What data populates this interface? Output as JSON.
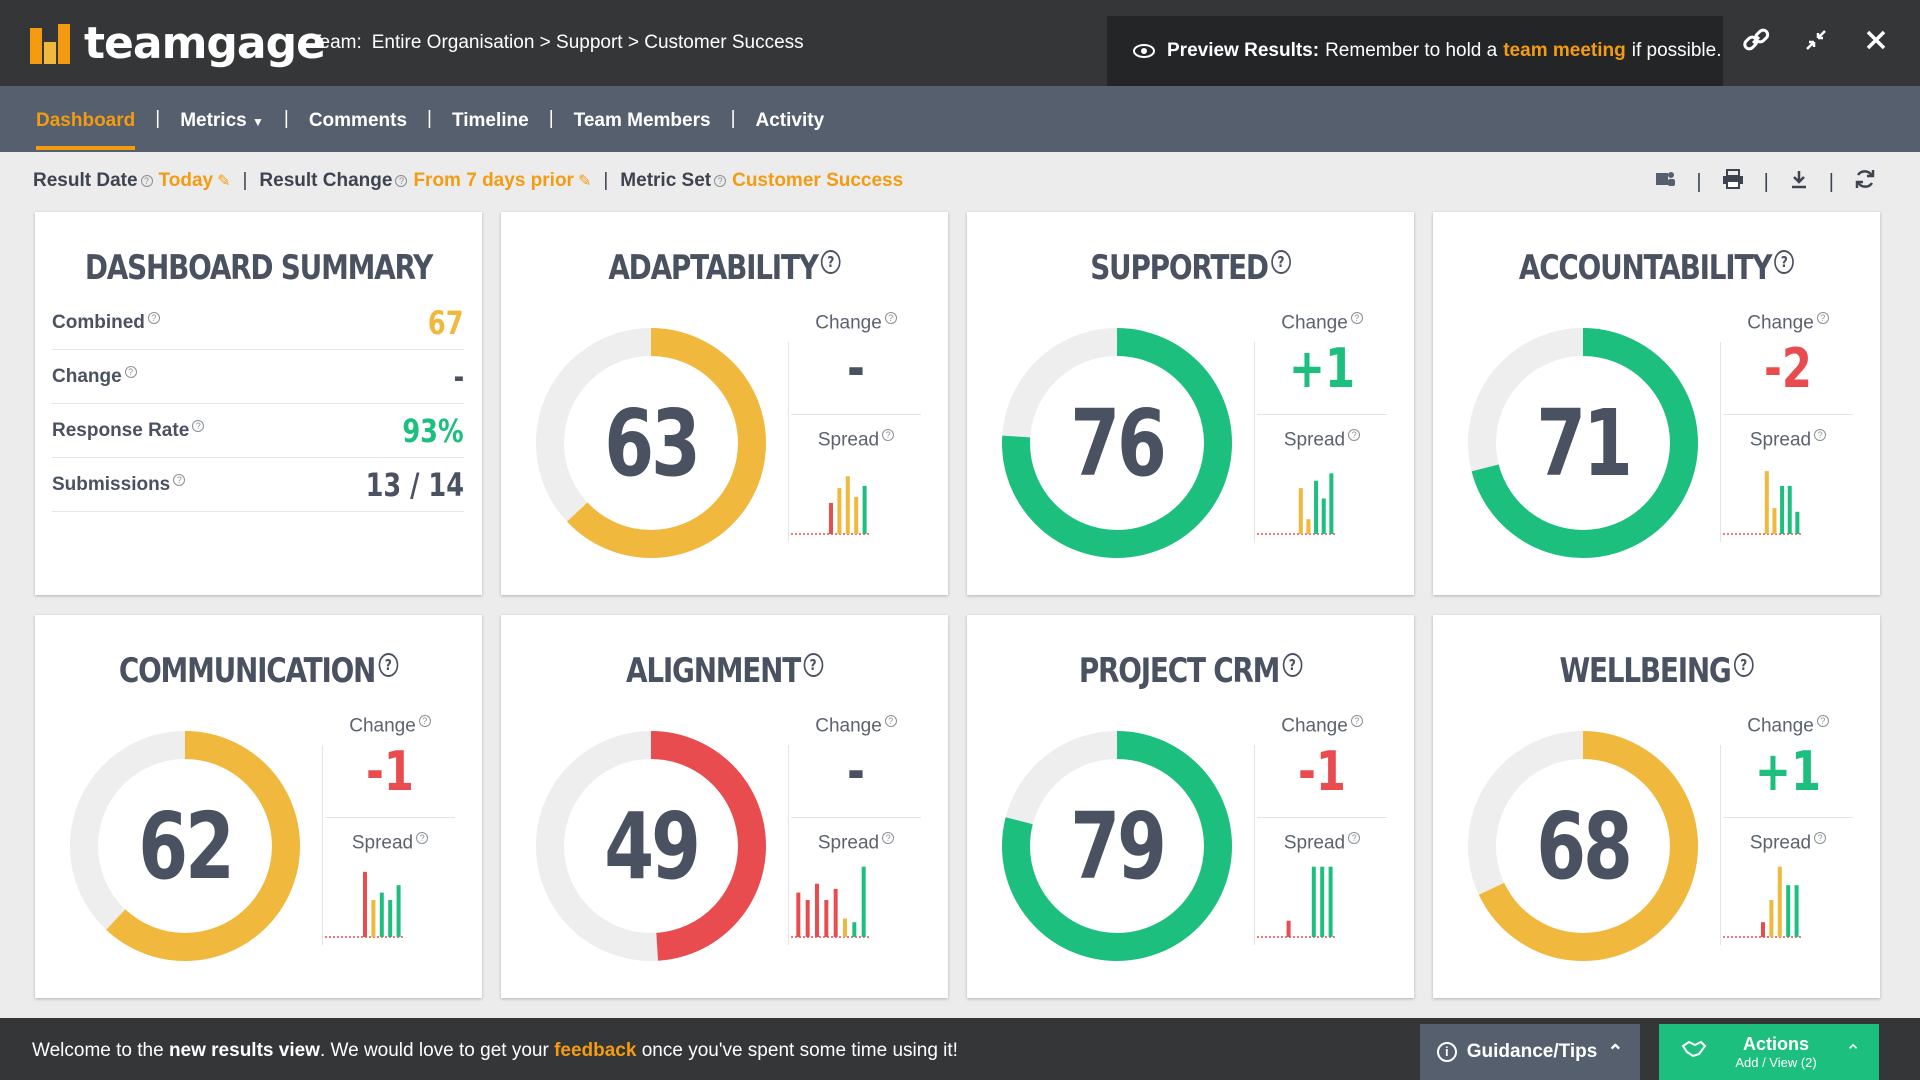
{
  "brand": {
    "name": "teamgage"
  },
  "breadcrumb": {
    "label": "Team:",
    "path": "Entire Organisation > Support > Customer Success"
  },
  "preview": {
    "bold": "Preview Results:",
    "before": "Remember to hold a",
    "link": "team meeting",
    "after": "if possible."
  },
  "nav": {
    "dashboard": "Dashboard",
    "metrics": "Metrics",
    "comments": "Comments",
    "timeline": "Timeline",
    "team_members": "Team Members",
    "activity": "Activity"
  },
  "filters": {
    "result_date_label": "Result Date",
    "result_date_value": "Today",
    "result_change_label": "Result Change",
    "result_change_value": "From 7 days prior",
    "metric_set_label": "Metric Set",
    "metric_set_value": "Customer Success"
  },
  "summary": {
    "title": "DASHBOARD SUMMARY",
    "rows": [
      {
        "label": "Combined",
        "value": "67",
        "color": "#f0b83c"
      },
      {
        "label": "Change",
        "value": "-",
        "color": "#4a5160"
      },
      {
        "label": "Response Rate",
        "value": "93%",
        "color": "#1dbf7e"
      },
      {
        "label": "Submissions",
        "value": "13 / 14",
        "color": "#4a5160"
      }
    ]
  },
  "labels": {
    "change": "Change",
    "spread": "Spread"
  },
  "metrics": [
    {
      "title": "ADAPTABILITY",
      "score": "63",
      "change": "-",
      "change_type": "neu",
      "color": "#f0b83c",
      "fraction": 0.63,
      "spread": [
        [
          "#e84c4f",
          0
        ],
        [
          "#e84c4f",
          0
        ],
        [
          "#e84c4f",
          0
        ],
        [
          "#e84c4f",
          0
        ],
        [
          "#e84c4f",
          0.42
        ],
        [
          "#f0b83c",
          0.62
        ],
        [
          "#f0b83c",
          0.78
        ],
        [
          "#f0b83c",
          0.5
        ],
        [
          "#1dbf7e",
          0.65
        ]
      ]
    },
    {
      "title": "SUPPORTED",
      "score": "76",
      "change": "+1",
      "change_type": "pos",
      "color": "#1dbf7e",
      "fraction": 0.76,
      "spread": [
        [
          "#e84c4f",
          0
        ],
        [
          "#e84c4f",
          0
        ],
        [
          "#e84c4f",
          0
        ],
        [
          "#e84c4f",
          0
        ],
        [
          "#e84c4f",
          0
        ],
        [
          "#f0b83c",
          0.62
        ],
        [
          "#f0b83c",
          0.2
        ],
        [
          "#1dbf7e",
          0.72
        ],
        [
          "#1dbf7e",
          0.48
        ],
        [
          "#1dbf7e",
          0.82
        ]
      ]
    },
    {
      "title": "ACCOUNTABILITY",
      "score": "71",
      "change": "-2",
      "change_type": "neg",
      "color": "#1dbf7e",
      "fraction": 0.71,
      "spread": [
        [
          "#e84c4f",
          0
        ],
        [
          "#e84c4f",
          0
        ],
        [
          "#e84c4f",
          0
        ],
        [
          "#e84c4f",
          0
        ],
        [
          "#e84c4f",
          0
        ],
        [
          "#f0b83c",
          0.85
        ],
        [
          "#f0b83c",
          0.35
        ],
        [
          "#1dbf7e",
          0.65
        ],
        [
          "#1dbf7e",
          0.65
        ],
        [
          "#1dbf7e",
          0.3
        ]
      ]
    },
    {
      "title": "COMMUNICATION",
      "score": "62",
      "change": "-1",
      "change_type": "neg",
      "color": "#f0b83c",
      "fraction": 0.62,
      "spread": [
        [
          "#e84c4f",
          0
        ],
        [
          "#e84c4f",
          0
        ],
        [
          "#e84c4f",
          0
        ],
        [
          "#e84c4f",
          0
        ],
        [
          "#e84c4f",
          0.88
        ],
        [
          "#f0b83c",
          0.5
        ],
        [
          "#1dbf7e",
          0.6
        ],
        [
          "#1dbf7e",
          0.5
        ],
        [
          "#1dbf7e",
          0.7
        ]
      ]
    },
    {
      "title": "ALIGNMENT",
      "score": "49",
      "change": "-",
      "change_type": "neu",
      "color": "#e84c4f",
      "fraction": 0.49,
      "spread": [
        [
          "#e84c4f",
          0.6
        ],
        [
          "#e84c4f",
          0.5
        ],
        [
          "#e84c4f",
          0.72
        ],
        [
          "#e84c4f",
          0.5
        ],
        [
          "#e84c4f",
          0.65
        ],
        [
          "#f0b83c",
          0.25
        ],
        [
          "#1dbf7e",
          0.2
        ],
        [
          "#1dbf7e",
          0.95
        ]
      ]
    },
    {
      "title": "PROJECT CRM",
      "score": "79",
      "change": "-1",
      "change_type": "neg",
      "color": "#1dbf7e",
      "fraction": 0.79,
      "spread": [
        [
          "#e84c4f",
          0
        ],
        [
          "#e84c4f",
          0
        ],
        [
          "#e84c4f",
          0
        ],
        [
          "#e84c4f",
          0.22
        ],
        [
          "#e84c4f",
          0
        ],
        [
          "#f0b83c",
          0
        ],
        [
          "#1dbf7e",
          0.95
        ],
        [
          "#1dbf7e",
          0.95
        ],
        [
          "#1dbf7e",
          0.95
        ]
      ]
    },
    {
      "title": "WELLBEING",
      "score": "68",
      "change": "+1",
      "change_type": "pos",
      "color": "#f0b83c",
      "fraction": 0.68,
      "spread": [
        [
          "#e84c4f",
          0
        ],
        [
          "#e84c4f",
          0
        ],
        [
          "#e84c4f",
          0
        ],
        [
          "#e84c4f",
          0
        ],
        [
          "#e84c4f",
          0.2
        ],
        [
          "#f0b83c",
          0.5
        ],
        [
          "#f0b83c",
          0.95
        ],
        [
          "#1dbf7e",
          0.7
        ],
        [
          "#1dbf7e",
          0.7
        ]
      ]
    }
  ],
  "footer": {
    "msg_1": "Welcome to the",
    "msg_bold": "new results view",
    "msg_2": ". We would love to get your",
    "msg_link": "feedback",
    "msg_3": "once you've spent some time using it!",
    "guidance": "Guidance/Tips",
    "actions_title": "Actions",
    "actions_sub": "Add / View (2)"
  },
  "colors": {
    "accent": "#f39c12",
    "green": "#1dbf7e",
    "yellow": "#f0b83c",
    "red": "#e84c4f"
  }
}
